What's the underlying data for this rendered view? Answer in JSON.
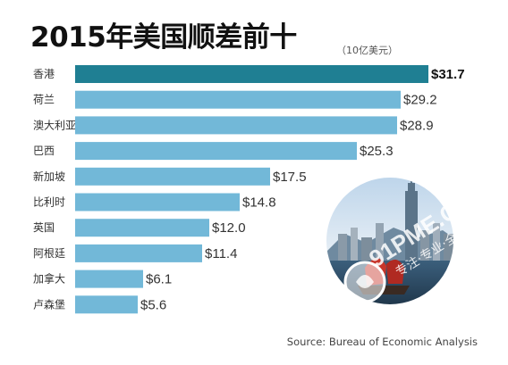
{
  "title": "2015年美国顺差前十",
  "unit": "（10亿美元）",
  "source": "Source: Bureau of Economic Analysis",
  "watermark": "91PME.COM",
  "watermark_sub": "专注·专业·全面",
  "colors": {
    "bar": "#72b8d8",
    "bar_highlight": "#1f7f93",
    "label_highlight": "#111111",
    "label": "#333333"
  },
  "chart_data": {
    "type": "bar",
    "orientation": "horizontal",
    "title": "2015年美国顺差前十",
    "unit": "（10亿美元）",
    "categories": [
      "香港",
      "荷兰",
      "澳大利亚",
      "巴西",
      "新加坡",
      "比利时",
      "英国",
      "阿根廷",
      "加拿大",
      "卢森堡"
    ],
    "values": [
      31.7,
      29.2,
      28.9,
      25.3,
      17.5,
      14.8,
      12.0,
      11.4,
      6.1,
      5.6
    ],
    "value_labels": [
      "$31.7",
      "$29.2",
      "$28.9",
      "$25.3",
      "$17.5",
      "$14.8",
      "$12.0",
      "$11.4",
      "$6.1",
      "$5.6"
    ],
    "highlight_index": 0,
    "xlim": [
      0,
      31.7
    ],
    "grid": false,
    "legend": "none"
  }
}
